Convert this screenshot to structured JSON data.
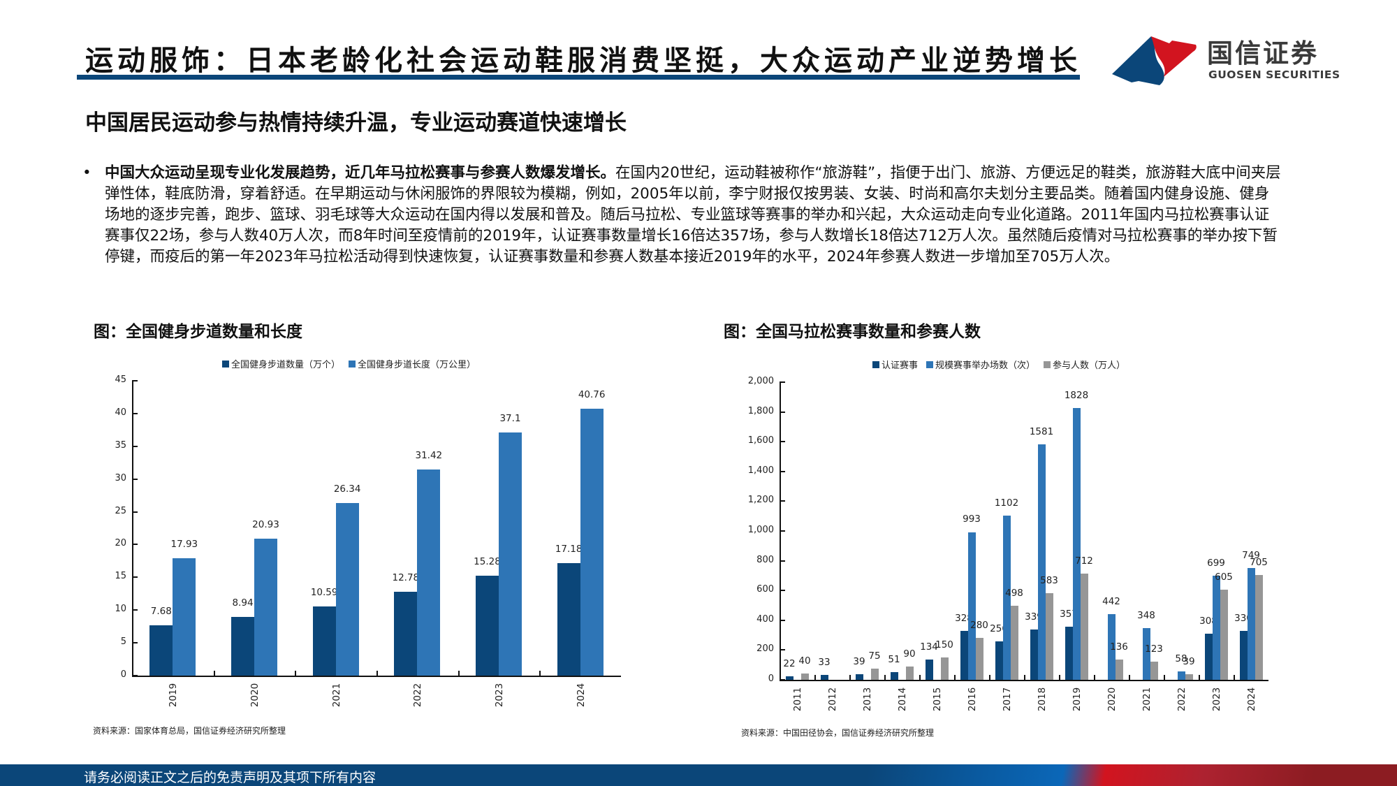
{
  "header": {
    "title": "运动服饰：日本老龄化社会运动鞋服消费坚挺，大众运动产业逆势增长",
    "brand_cn": "国信证券",
    "brand_en": "GUOSEN SECURITIES",
    "accent_color": "#0b4679",
    "logo_red": "#d2141f"
  },
  "subtitle": "中国居民运动参与热情持续升温，专业运动赛道快速增长",
  "paragraph": {
    "bullet": "•",
    "bold_lead": "中国大众运动呈现专业化发展趋势，近几年马拉松赛事与参赛人数爆发增长。",
    "body": "在国内20世纪，运动鞋被称作“旅游鞋”，指便于出门、旅游、方便远足的鞋类，旅游鞋大底中间夹层弹性体，鞋底防滑，穿着舒适。在早期运动与休闲服饰的界限较为模糊，例如，2005年以前，李宁财报仅按男装、女装、时尚和高尔夫划分主要品类。随着国内健身设施、健身场地的逐步完善，跑步、篮球、羽毛球等大众运动在国内得以发展和普及。随后马拉松、专业篮球等赛事的举办和兴起，大众运动走向专业化道路。2011年国内马拉松赛事认证赛事仅22场，参与人数40万人次，而8年时间至疫情前的2019年，认证赛事数量增长16倍达357场，参与人数增长18倍达712万人次。虽然随后疫情对马拉松赛事的举办按下暂停键，而疫后的第一年2023年马拉松活动得到快速恢复，认证赛事数量和参赛人数基本接近2019年的水平，2024年参赛人数进一步增加至705万人次。"
  },
  "charts": {
    "left": {
      "title": "图：全国健身步道数量和长度",
      "source": "资料来源：国家体育总局，国信证券经济研究所整理"
    },
    "right": {
      "title": "图：全国马拉松赛事数量和参赛人数",
      "source": "资料来源：中国田径协会，国信证券经济研究所整理"
    }
  },
  "chart_data": [
    {
      "type": "bar",
      "title": "图：全国健身步道数量和长度",
      "categories": [
        "2019",
        "2020",
        "2021",
        "2022",
        "2023",
        "2024"
      ],
      "series": [
        {
          "name": "全国健身步道数量（万个）",
          "color": "#0b4679",
          "values": [
            7.68,
            8.94,
            10.59,
            12.78,
            15.28,
            17.18
          ],
          "labels": [
            "7.68",
            "8.94",
            "10.59",
            "12.78",
            "15.28",
            "17.18"
          ]
        },
        {
          "name": "全国健身步道长度（万公里）",
          "color": "#2e75b6",
          "values": [
            17.93,
            20.93,
            26.34,
            31.42,
            37.1,
            40.76
          ],
          "labels": [
            "17.93",
            "20.93",
            "26.34",
            "31.42",
            "37.1",
            "40.76"
          ]
        }
      ],
      "yticks": [
        "0",
        "5",
        "10",
        "15",
        "20",
        "25",
        "30",
        "35",
        "40",
        "45"
      ],
      "ylim": [
        0,
        45
      ],
      "xlabel": "",
      "ylabel": "",
      "grid": false,
      "legend_position": "top"
    },
    {
      "type": "bar",
      "title": "图：全国马拉松赛事数量和参赛人数",
      "categories": [
        "2011",
        "2012",
        "2013",
        "2014",
        "2015",
        "2016",
        "2017",
        "2018",
        "2019",
        "2020",
        "2021",
        "2022",
        "2023",
        "2024"
      ],
      "series": [
        {
          "name": "认证赛事",
          "color": "#0b4679",
          "values": [
            22,
            33,
            39,
            51,
            134,
            328,
            256,
            339,
            357,
            null,
            null,
            null,
            308,
            330
          ]
        },
        {
          "name": "规模赛事举办场数（次）",
          "color": "#2e75b6",
          "values": [
            null,
            null,
            null,
            null,
            null,
            993,
            1102,
            1581,
            1828,
            442,
            348,
            58,
            699,
            749
          ]
        },
        {
          "name": "参与人数（万人）",
          "color": "#969696",
          "values": [
            40,
            null,
            75,
            90,
            150,
            280,
            498,
            583,
            712,
            136,
            123,
            39,
            605,
            705
          ]
        }
      ],
      "yticks": [
        "0",
        "200",
        "400",
        "600",
        "800",
        "1,000",
        "1,200",
        "1,400",
        "1,600",
        "1,800",
        "2,000"
      ],
      "ylim": [
        0,
        2000
      ],
      "xlabel": "",
      "ylabel": "",
      "grid": false,
      "legend_position": "top"
    }
  ],
  "footer": {
    "disclaimer": "请务必阅读正文之后的免责声明及其项下所有内容"
  }
}
